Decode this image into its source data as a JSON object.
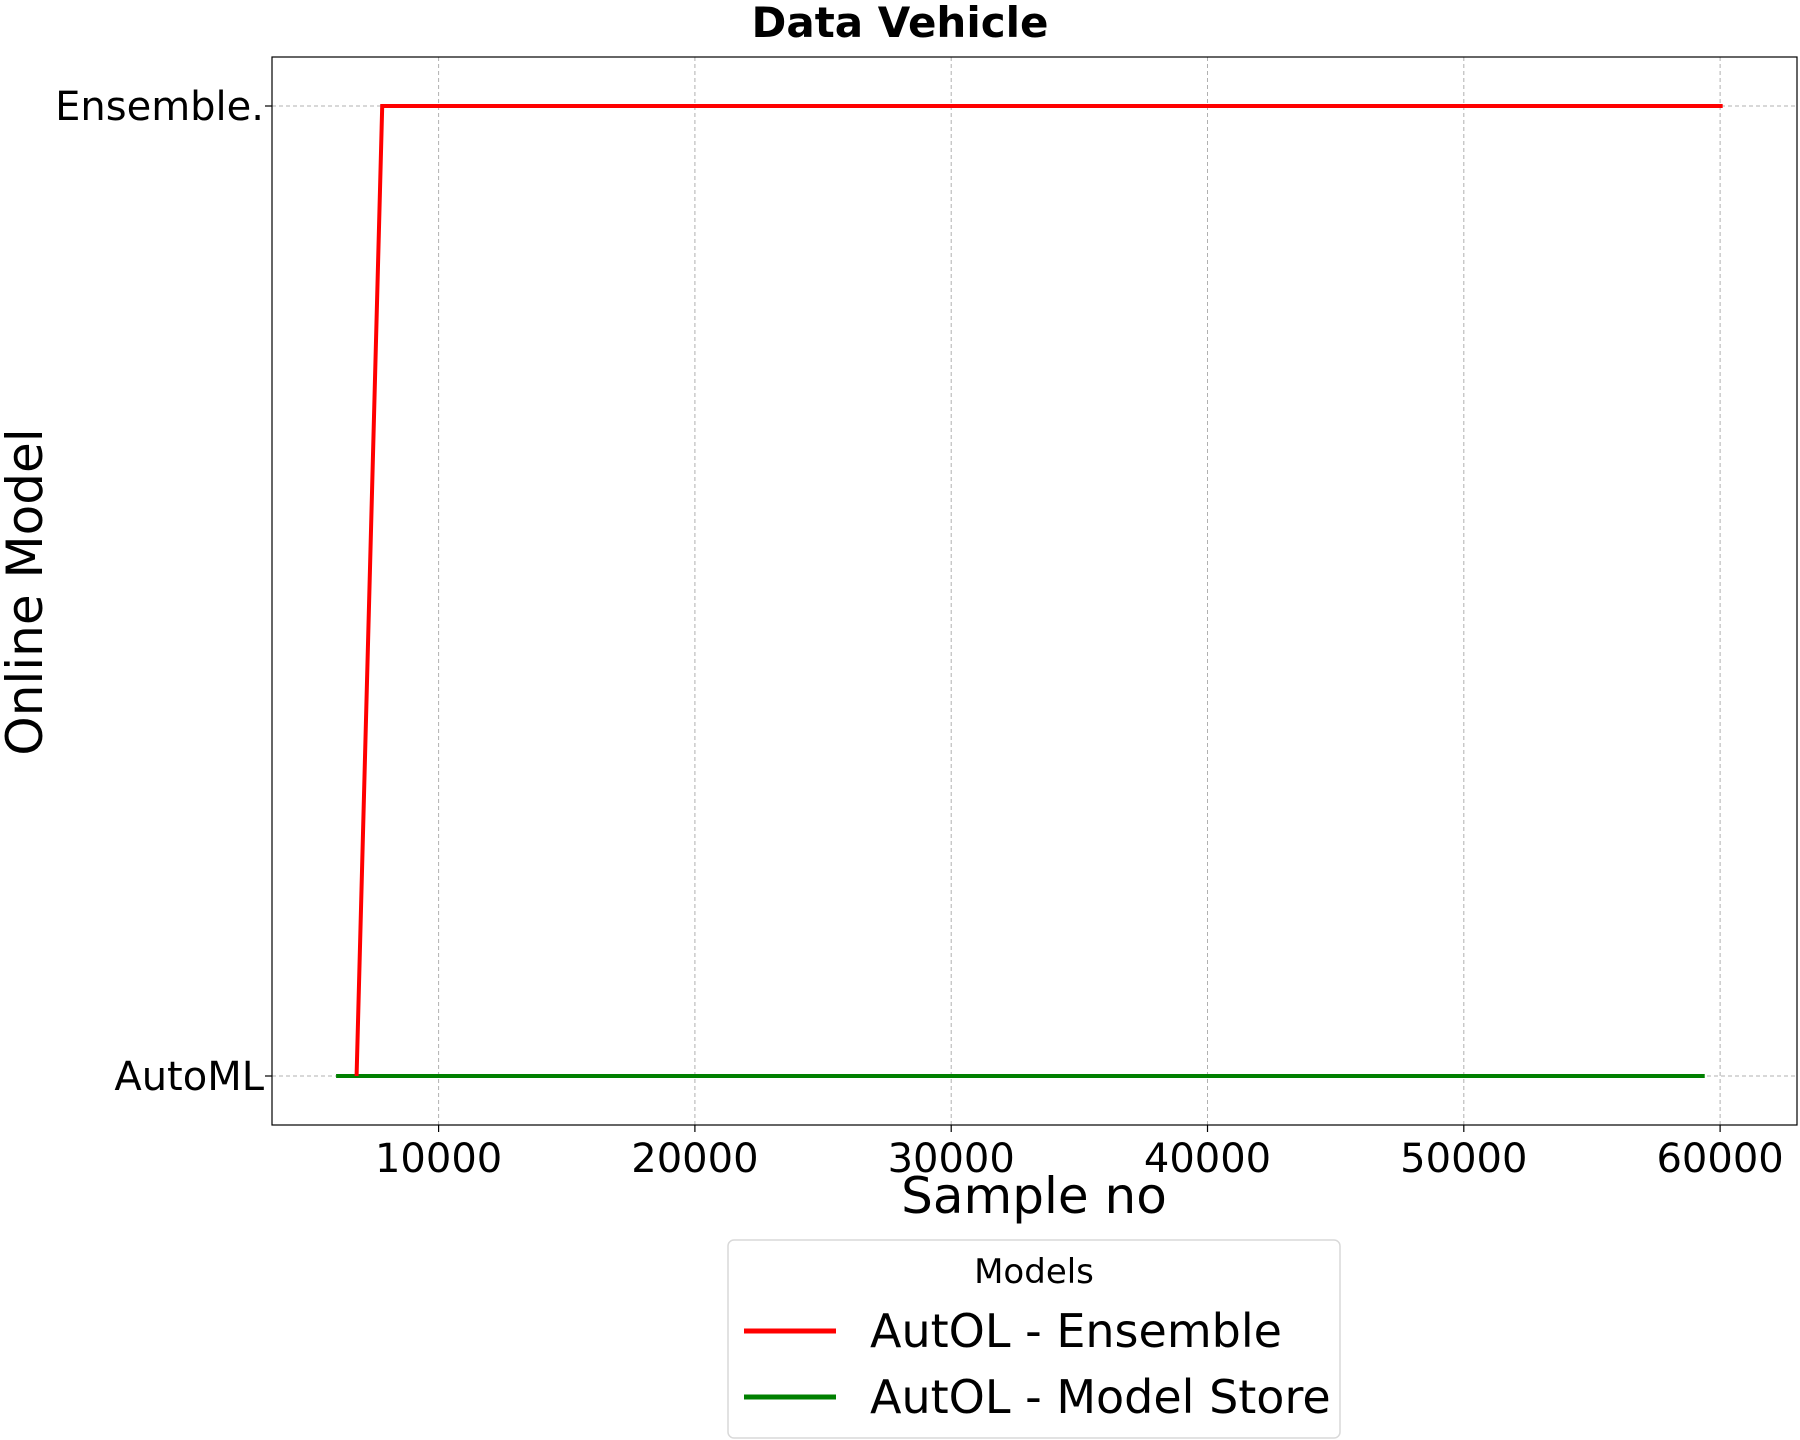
{
  "chart_data": {
    "type": "line",
    "title": "Data Vehicle",
    "xlabel": "Sample no",
    "ylabel": "Online Model",
    "x_ticks": [
      10000,
      20000,
      30000,
      40000,
      50000,
      60000
    ],
    "x_tick_labels": [
      "10000",
      "20000",
      "30000",
      "40000",
      "50000",
      "60000"
    ],
    "xlim": [
      3500,
      63000
    ],
    "y_categories": [
      "AutoML",
      "Ensemble."
    ],
    "grid": true,
    "legend": {
      "title": "Models",
      "placement": "below"
    },
    "series": [
      {
        "name": "AutOL - Ensemble",
        "color": "#ff0000",
        "points": [
          [
            6800,
            "AutoML"
          ],
          [
            7800,
            "Ensemble."
          ],
          [
            60100,
            "Ensemble."
          ]
        ]
      },
      {
        "name": "AutOL - Model Store",
        "color": "#008000",
        "points": [
          [
            6000,
            "AutoML"
          ],
          [
            59400,
            "AutoML"
          ]
        ]
      }
    ]
  }
}
